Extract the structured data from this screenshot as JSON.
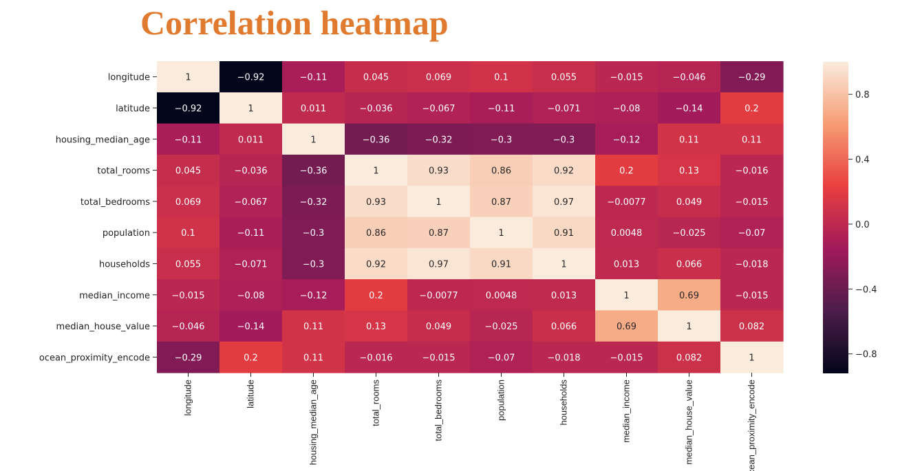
{
  "title": "Correlation heatmap",
  "chart_data": {
    "type": "heatmap",
    "rows": [
      "longitude",
      "latitude",
      "housing_median_age",
      "total_rooms",
      "total_bedrooms",
      "population",
      "households",
      "median_income",
      "median_house_value",
      "ocean_proximity_encode"
    ],
    "columns": [
      "longitude",
      "latitude",
      "housing_median_age",
      "total_rooms",
      "total_bedrooms",
      "population",
      "households",
      "median_income",
      "median_house_value",
      "ocean_proximity_encode"
    ],
    "values": [
      [
        1,
        -0.92,
        -0.11,
        0.045,
        0.069,
        0.1,
        0.055,
        -0.015,
        -0.046,
        -0.29
      ],
      [
        -0.92,
        1,
        0.011,
        -0.036,
        -0.067,
        -0.11,
        -0.071,
        -0.08,
        -0.14,
        0.2
      ],
      [
        -0.11,
        0.011,
        1,
        -0.36,
        -0.32,
        -0.3,
        -0.3,
        -0.12,
        0.11,
        0.11
      ],
      [
        0.045,
        -0.036,
        -0.36,
        1,
        0.93,
        0.86,
        0.92,
        0.2,
        0.13,
        -0.016
      ],
      [
        0.069,
        -0.067,
        -0.32,
        0.93,
        1,
        0.87,
        0.97,
        -0.0077,
        0.049,
        -0.015
      ],
      [
        0.1,
        -0.11,
        -0.3,
        0.86,
        0.87,
        1,
        0.91,
        0.0048,
        -0.025,
        -0.07
      ],
      [
        0.055,
        -0.071,
        -0.3,
        0.92,
        0.97,
        0.91,
        1,
        0.013,
        0.066,
        -0.018
      ],
      [
        -0.015,
        -0.08,
        -0.12,
        0.2,
        -0.0077,
        0.0048,
        0.013,
        1,
        0.69,
        -0.015
      ],
      [
        -0.046,
        -0.14,
        0.11,
        0.13,
        0.049,
        -0.025,
        0.066,
        0.69,
        1,
        0.082
      ],
      [
        -0.29,
        0.2,
        0.11,
        -0.016,
        -0.015,
        -0.07,
        -0.018,
        -0.015,
        0.082,
        1
      ]
    ],
    "colorbar": {
      "range": [
        -0.92,
        1
      ],
      "ticks": [
        0.8,
        0.4,
        0.0,
        -0.4,
        -0.8
      ],
      "tick_labels": [
        "0.8",
        "0.4",
        "0.0",
        "−0.4",
        "−0.8"
      ]
    },
    "colormap": "rocket",
    "colormap_stops": [
      "#03051a",
      "#4c1d4b",
      "#a11a5b",
      "#e83f3f",
      "#f69c73",
      "#faebdd"
    ]
  }
}
